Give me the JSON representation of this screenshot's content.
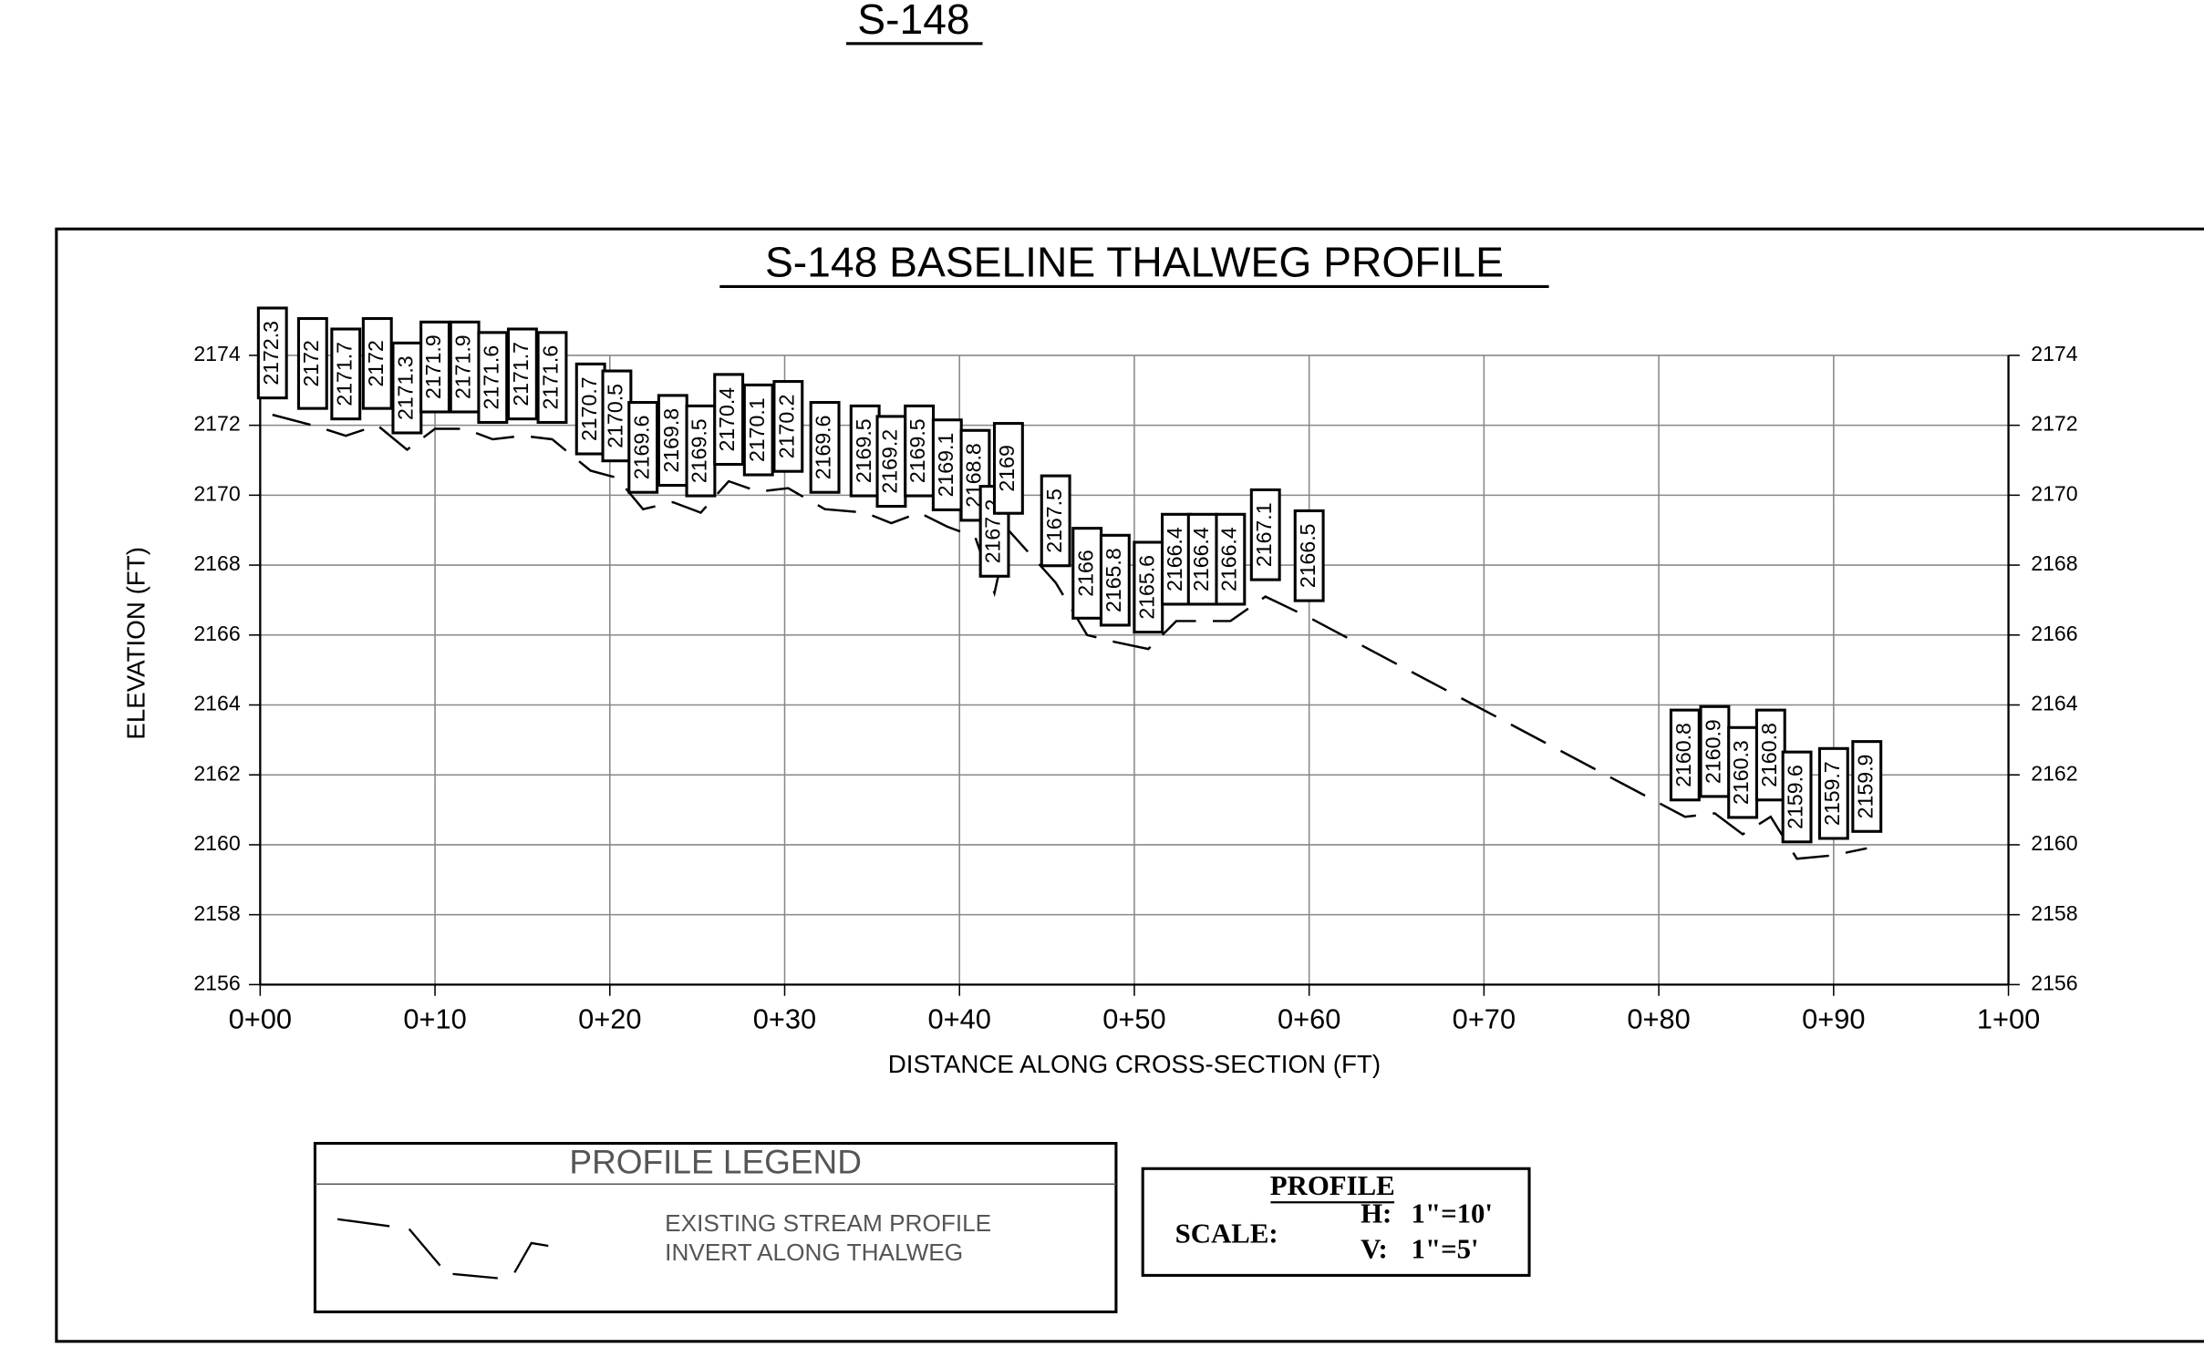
{
  "page_title": "S-148",
  "chart_data": {
    "type": "line",
    "title": "S-148 BASELINE THALWEG PROFILE",
    "x_label": "DISTANCE ALONG CROSS-SECTION (FT)",
    "y_label": "ELEVATION (FT)",
    "xlim": [
      0,
      100
    ],
    "xticks": [
      {
        "value": 0,
        "label": "0+00"
      },
      {
        "value": 10,
        "label": "0+10"
      },
      {
        "value": 20,
        "label": "0+20"
      },
      {
        "value": 30,
        "label": "0+30"
      },
      {
        "value": 40,
        "label": "0+40"
      },
      {
        "value": 50,
        "label": "0+50"
      },
      {
        "value": 60,
        "label": "0+60"
      },
      {
        "value": 70,
        "label": "0+70"
      },
      {
        "value": 80,
        "label": "0+80"
      },
      {
        "value": 90,
        "label": "0+90"
      },
      {
        "value": 100,
        "label": "1+00"
      }
    ],
    "ylim": [
      2156,
      2174
    ],
    "yticks": [
      2156,
      2158,
      2160,
      2162,
      2164,
      2166,
      2168,
      2170,
      2172,
      2174
    ],
    "grid": true,
    "x": [
      0.7,
      3.0,
      4.9,
      6.7,
      8.4,
      10.0,
      11.7,
      13.3,
      15.0,
      16.7,
      18.9,
      20.4,
      21.9,
      23.6,
      25.2,
      26.8,
      28.5,
      30.2,
      32.3,
      34.6,
      36.1,
      37.7,
      39.3,
      40.9,
      42.0,
      42.8,
      45.5,
      47.3,
      48.9,
      50.8,
      52.4,
      53.9,
      55.5,
      57.5,
      60.0,
      81.5,
      83.2,
      84.8,
      86.4,
      87.9,
      90.0,
      91.9
    ],
    "series": [
      {
        "name": "EXISTING STREAM PROFILE INVERT ALONG THALWEG",
        "color": "#000000",
        "values": [
          2172.3,
          2172.0,
          2171.7,
          2172.0,
          2171.3,
          2171.9,
          2171.9,
          2171.6,
          2171.7,
          2171.6,
          2170.7,
          2170.5,
          2169.6,
          2169.8,
          2169.5,
          2170.4,
          2170.1,
          2170.2,
          2169.6,
          2169.5,
          2169.2,
          2169.5,
          2169.1,
          2168.8,
          2167.2,
          2169.0,
          2167.5,
          2166.0,
          2165.8,
          2165.6,
          2166.4,
          2166.4,
          2166.4,
          2167.1,
          2166.5,
          2160.8,
          2160.9,
          2160.3,
          2160.8,
          2159.6,
          2159.7,
          2159.9
        ]
      }
    ]
  },
  "legend": {
    "title": "PROFILE LEGEND",
    "line1": "EXISTING  STREAM PROFILE",
    "line2": "INVERT ALONG THALWEG"
  },
  "scale": {
    "title": "PROFILE",
    "label": "SCALE:",
    "h_label": "H:",
    "h_value": "1\"=10'",
    "v_label": "V:",
    "v_value": "1\"=5'"
  }
}
